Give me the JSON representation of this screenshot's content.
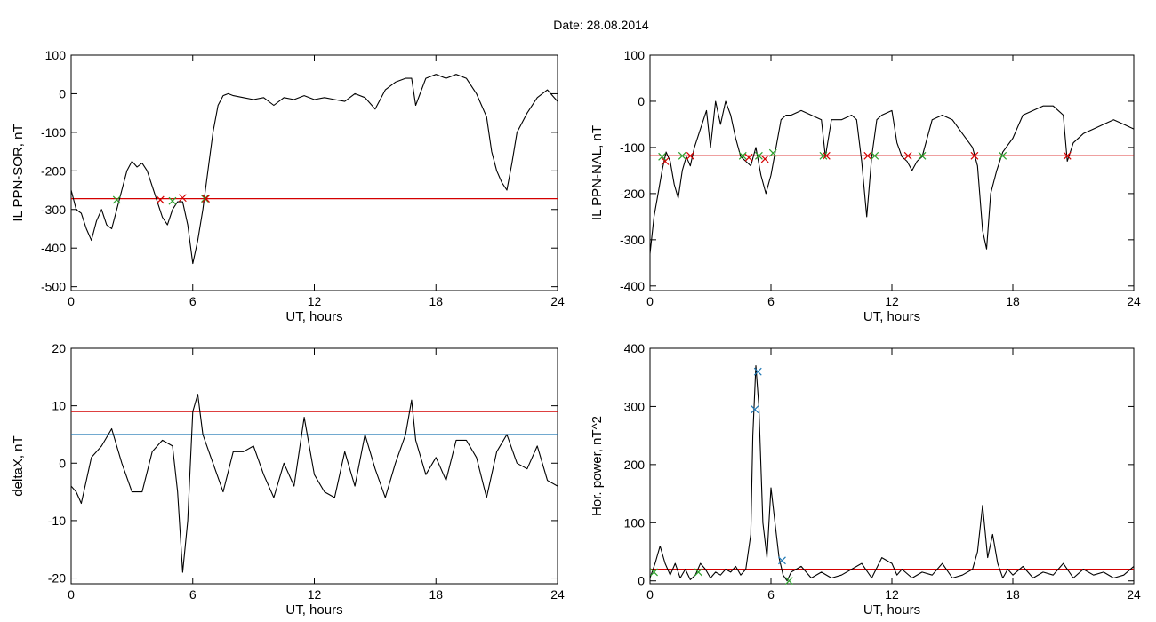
{
  "page": {
    "date_label": "Date:  28.08.2014"
  },
  "chart_data": [
    {
      "id": "p1",
      "type": "line",
      "title": "",
      "xlabel": "UT, hours",
      "ylabel": "IL PPN-SOR, nT",
      "xlim": [
        0,
        24
      ],
      "ylim": [
        -510,
        100
      ],
      "xticks": [
        0,
        6,
        12,
        18,
        24
      ],
      "yticks": [
        -500,
        -400,
        -300,
        -200,
        -100,
        0,
        100
      ],
      "hlines": [
        {
          "y": -272,
          "color": "#d40000"
        }
      ],
      "series": [
        {
          "color": "#000000",
          "x": [
            0,
            0.25,
            0.5,
            0.75,
            1,
            1.25,
            1.5,
            1.75,
            2,
            2.25,
            2.5,
            2.75,
            3,
            3.25,
            3.5,
            3.75,
            4,
            4.25,
            4.5,
            4.75,
            5,
            5.25,
            5.5,
            5.75,
            6,
            6.25,
            6.5,
            6.75,
            7,
            7.25,
            7.5,
            7.75,
            8,
            8.5,
            9,
            9.5,
            10,
            10.5,
            11,
            11.5,
            12,
            12.5,
            13,
            13.5,
            14,
            14.5,
            15,
            15.5,
            16,
            16.5,
            16.8,
            17,
            17.5,
            18,
            18.5,
            19,
            19.5,
            20,
            20.5,
            20.75,
            21,
            21.25,
            21.5,
            21.75,
            22,
            22.5,
            23,
            23.5,
            24
          ],
          "y": [
            -250,
            -300,
            -310,
            -350,
            -380,
            -330,
            -300,
            -340,
            -350,
            -300,
            -250,
            -200,
            -175,
            -190,
            -180,
            -200,
            -240,
            -280,
            -320,
            -340,
            -300,
            -280,
            -280,
            -340,
            -440,
            -380,
            -300,
            -200,
            -100,
            -30,
            -5,
            0,
            -5,
            -10,
            -15,
            -10,
            -30,
            -10,
            -15,
            -5,
            -15,
            -10,
            -15,
            -20,
            0,
            -10,
            -40,
            10,
            30,
            40,
            40,
            -30,
            40,
            50,
            40,
            50,
            40,
            0,
            -60,
            -150,
            -200,
            -230,
            -250,
            -180,
            -100,
            -50,
            -10,
            10,
            -20
          ]
        }
      ],
      "markers": [
        {
          "x": 2.25,
          "y": -275,
          "color": "#2ca02c"
        },
        {
          "x": 4.4,
          "y": -275,
          "color": "#d40000"
        },
        {
          "x": 5.0,
          "y": -278,
          "color": "#2ca02c"
        },
        {
          "x": 5.5,
          "y": -270,
          "color": "#d40000"
        },
        {
          "x": 6.6,
          "y": -272,
          "color": "#2ca02c"
        },
        {
          "x": 6.65,
          "y": -272,
          "color": "#d40000"
        }
      ]
    },
    {
      "id": "p2",
      "type": "line",
      "title": "",
      "xlabel": "UT, hours",
      "ylabel": "IL PPN-NAL, nT",
      "xlim": [
        0,
        24
      ],
      "ylim": [
        -410,
        100
      ],
      "xticks": [
        0,
        6,
        12,
        18,
        24
      ],
      "yticks": [
        -400,
        -300,
        -200,
        -100,
        0,
        100
      ],
      "hlines": [
        {
          "y": -118,
          "color": "#d40000"
        }
      ],
      "series": [
        {
          "color": "#000000",
          "x": [
            0,
            0.2,
            0.4,
            0.6,
            0.8,
            1,
            1.2,
            1.4,
            1.6,
            1.8,
            2,
            2.2,
            2.5,
            2.8,
            3,
            3.25,
            3.5,
            3.75,
            4,
            4.25,
            4.5,
            4.75,
            5,
            5.25,
            5.5,
            5.75,
            6,
            6.25,
            6.5,
            6.75,
            7,
            7.5,
            8,
            8.5,
            8.7,
            9,
            9.5,
            10,
            10.25,
            10.5,
            10.75,
            11,
            11.25,
            11.5,
            12,
            12.25,
            12.5,
            12.75,
            13,
            13.25,
            13.5,
            14,
            14.5,
            15,
            15.5,
            16,
            16.25,
            16.5,
            16.7,
            16.9,
            17.2,
            17.5,
            18,
            18.5,
            19,
            19.5,
            20,
            20.5,
            20.7,
            21,
            21.5,
            22,
            22.5,
            23,
            23.5,
            24
          ],
          "y": [
            -330,
            -250,
            -200,
            -150,
            -110,
            -130,
            -180,
            -210,
            -150,
            -120,
            -140,
            -100,
            -60,
            -20,
            -100,
            0,
            -50,
            0,
            -30,
            -80,
            -120,
            -130,
            -140,
            -100,
            -160,
            -200,
            -160,
            -100,
            -40,
            -30,
            -30,
            -20,
            -30,
            -40,
            -120,
            -40,
            -40,
            -30,
            -40,
            -130,
            -250,
            -120,
            -40,
            -30,
            -20,
            -90,
            -120,
            -130,
            -150,
            -130,
            -120,
            -40,
            -30,
            -40,
            -70,
            -100,
            -140,
            -280,
            -320,
            -200,
            -150,
            -110,
            -80,
            -30,
            -20,
            -10,
            -10,
            -30,
            -130,
            -90,
            -70,
            -60,
            -50,
            -40,
            -50,
            -60
          ]
        }
      ],
      "markers": [
        {
          "x": 0.6,
          "y": -120,
          "color": "#2ca02c"
        },
        {
          "x": 0.75,
          "y": -130,
          "color": "#d40000"
        },
        {
          "x": 1.6,
          "y": -118,
          "color": "#2ca02c"
        },
        {
          "x": 2.0,
          "y": -118,
          "color": "#d40000"
        },
        {
          "x": 4.6,
          "y": -118,
          "color": "#2ca02c"
        },
        {
          "x": 4.9,
          "y": -122,
          "color": "#d40000"
        },
        {
          "x": 5.4,
          "y": -118,
          "color": "#2ca02c"
        },
        {
          "x": 5.7,
          "y": -125,
          "color": "#d40000"
        },
        {
          "x": 6.1,
          "y": -112,
          "color": "#2ca02c"
        },
        {
          "x": 8.6,
          "y": -118,
          "color": "#2ca02c"
        },
        {
          "x": 8.75,
          "y": -118,
          "color": "#d40000"
        },
        {
          "x": 10.8,
          "y": -118,
          "color": "#d40000"
        },
        {
          "x": 11.15,
          "y": -118,
          "color": "#2ca02c"
        },
        {
          "x": 12.8,
          "y": -118,
          "color": "#d40000"
        },
        {
          "x": 13.5,
          "y": -118,
          "color": "#2ca02c"
        },
        {
          "x": 16.1,
          "y": -118,
          "color": "#d40000"
        },
        {
          "x": 17.5,
          "y": -118,
          "color": "#2ca02c"
        },
        {
          "x": 20.7,
          "y": -118,
          "color": "#d40000"
        }
      ]
    },
    {
      "id": "p3",
      "type": "line",
      "title": "",
      "xlabel": "UT, hours",
      "ylabel": "deltaX, nT",
      "xlim": [
        0,
        24
      ],
      "ylim": [
        -21,
        20
      ],
      "xticks": [
        0,
        6,
        12,
        18,
        24
      ],
      "yticks": [
        -20,
        -10,
        0,
        10,
        20
      ],
      "hlines": [
        {
          "y": 9,
          "color": "#d40000"
        },
        {
          "y": 5,
          "color": "#1f77b4"
        }
      ],
      "series": [
        {
          "color": "#000000",
          "x": [
            0,
            0.25,
            0.5,
            0.75,
            1,
            1.5,
            2,
            2.5,
            3,
            3.5,
            4,
            4.5,
            5,
            5.25,
            5.5,
            5.75,
            6,
            6.25,
            6.5,
            7,
            7.5,
            8,
            8.5,
            9,
            9.5,
            10,
            10.5,
            11,
            11.5,
            12,
            12.5,
            13,
            13.5,
            14,
            14.5,
            15,
            15.5,
            16,
            16.5,
            16.8,
            17,
            17.5,
            18,
            18.5,
            19,
            19.5,
            20,
            20.5,
            21,
            21.5,
            22,
            22.5,
            23,
            23.5,
            24
          ],
          "y": [
            -4,
            -5,
            -7,
            -3,
            1,
            3,
            6,
            0,
            -5,
            -5,
            2,
            4,
            3,
            -5,
            -19,
            -10,
            9,
            12,
            5,
            0,
            -5,
            2,
            2,
            3,
            -2,
            -6,
            0,
            -4,
            8,
            -2,
            -5,
            -6,
            2,
            -4,
            5,
            -1,
            -6,
            0,
            5,
            11,
            4,
            -2,
            1,
            -3,
            4,
            4,
            1,
            -6,
            2,
            5,
            0,
            -1,
            3,
            -3,
            -4
          ]
        }
      ],
      "markers": []
    },
    {
      "id": "p4",
      "type": "line",
      "title": "",
      "xlabel": "UT, hours",
      "ylabel": "Hor. power, nT^2",
      "xlim": [
        0,
        24
      ],
      "ylim": [
        -5,
        400
      ],
      "xticks": [
        0,
        6,
        12,
        18,
        24
      ],
      "yticks": [
        0,
        100,
        200,
        300,
        400
      ],
      "hlines": [
        {
          "y": 20,
          "color": "#d40000"
        }
      ],
      "series": [
        {
          "color": "#000000",
          "x": [
            0,
            0.25,
            0.5,
            0.75,
            1,
            1.25,
            1.5,
            1.75,
            2,
            2.25,
            2.5,
            2.75,
            3,
            3.25,
            3.5,
            3.75,
            4,
            4.25,
            4.5,
            4.75,
            5,
            5.1,
            5.25,
            5.4,
            5.6,
            5.8,
            6,
            6.2,
            6.4,
            6.6,
            6.8,
            7,
            7.5,
            8,
            8.5,
            9,
            9.5,
            10,
            10.5,
            11,
            11.5,
            12,
            12.25,
            12.5,
            13,
            13.5,
            14,
            14.5,
            15,
            15.5,
            16,
            16.25,
            16.5,
            16.75,
            17,
            17.25,
            17.5,
            17.75,
            18,
            18.5,
            19,
            19.5,
            20,
            20.5,
            21,
            21.5,
            22,
            22.5,
            23,
            23.5,
            24
          ],
          "y": [
            5,
            30,
            60,
            30,
            10,
            30,
            5,
            20,
            2,
            10,
            30,
            20,
            5,
            15,
            10,
            20,
            15,
            25,
            10,
            20,
            80,
            250,
            370,
            300,
            100,
            40,
            160,
            100,
            40,
            10,
            0,
            15,
            25,
            5,
            15,
            5,
            10,
            20,
            30,
            5,
            40,
            30,
            10,
            20,
            5,
            15,
            10,
            30,
            5,
            10,
            20,
            50,
            130,
            40,
            80,
            30,
            5,
            20,
            10,
            25,
            5,
            15,
            10,
            30,
            5,
            20,
            10,
            15,
            5,
            10,
            25
          ]
        }
      ],
      "markers": [
        {
          "x": 0.2,
          "y": 15,
          "color": "#2ca02c"
        },
        {
          "x": 2.4,
          "y": 15,
          "color": "#2ca02c"
        },
        {
          "x": 5.2,
          "y": 295,
          "color": "#1f77b4"
        },
        {
          "x": 5.35,
          "y": 360,
          "color": "#1f77b4"
        },
        {
          "x": 6.55,
          "y": 35,
          "color": "#1f77b4"
        },
        {
          "x": 6.9,
          "y": 0,
          "color": "#2ca02c"
        }
      ]
    }
  ]
}
